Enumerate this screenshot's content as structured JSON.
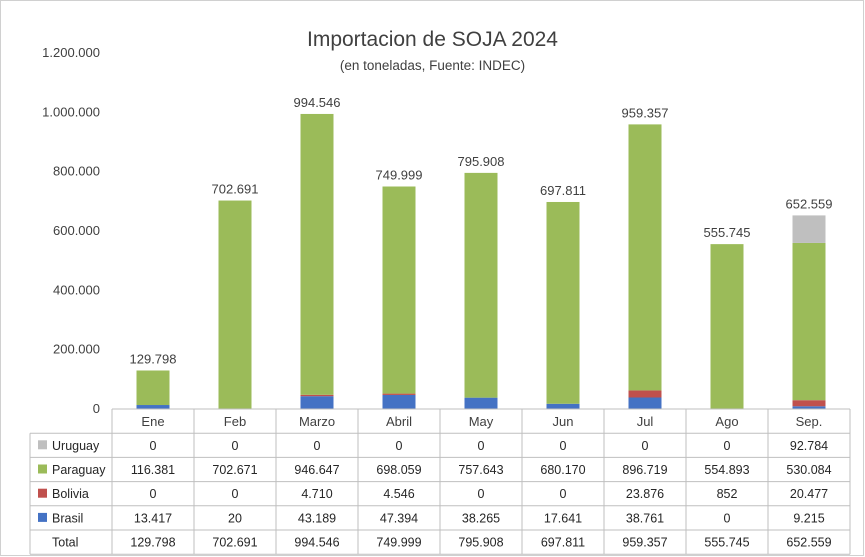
{
  "chart_data": {
    "type": "bar",
    "stacked": true,
    "title": "Importacion de SOJA 2024",
    "subtitle": "(en toneladas, Fuente: INDEC)",
    "categories": [
      "Ene",
      "Feb",
      "Marzo",
      "Abril",
      "May",
      "Jun",
      "Jul",
      "Ago",
      "Sep."
    ],
    "ylim": [
      0,
      1200000
    ],
    "yticks": [
      "0",
      "200.000",
      "400.000",
      "600.000",
      "800.000",
      "1.000.000",
      "1.200.000"
    ],
    "ytick_values": [
      0,
      200000,
      400000,
      600000,
      800000,
      1000000,
      1200000
    ],
    "grid": false,
    "legend": "table-below",
    "series": [
      {
        "name": "Brasil",
        "color": "#4472c4",
        "values": [
          13417,
          20,
          43189,
          47394,
          38265,
          17641,
          38761,
          0,
          9215
        ],
        "labels": [
          "13.417",
          "20",
          "43.189",
          "47.394",
          "38.265",
          "17.641",
          "38.761",
          "0",
          "9.215"
        ]
      },
      {
        "name": "Bolivia",
        "color": "#c0504d",
        "values": [
          0,
          0,
          4710,
          4546,
          0,
          0,
          23876,
          852,
          20477
        ],
        "labels": [
          "0",
          "0",
          "4.710",
          "4.546",
          "0",
          "0",
          "23.876",
          "852",
          "20.477"
        ]
      },
      {
        "name": "Paraguay",
        "color": "#9bbb59",
        "values": [
          116381,
          702671,
          946647,
          698059,
          757643,
          680170,
          896719,
          554893,
          530084
        ],
        "labels": [
          "116.381",
          "702.671",
          "946.647",
          "698.059",
          "757.643",
          "680.170",
          "896.719",
          "554.893",
          "530.084"
        ]
      },
      {
        "name": "Uruguay",
        "color": "#bfbfbf",
        "values": [
          0,
          0,
          0,
          0,
          0,
          0,
          0,
          0,
          92784
        ],
        "labels": [
          "0",
          "0",
          "0",
          "0",
          "0",
          "0",
          "0",
          "0",
          "92.784"
        ]
      }
    ],
    "totals": {
      "name": "Total",
      "values": [
        129798,
        702691,
        994546,
        749999,
        795908,
        697811,
        959357,
        555745,
        652559
      ],
      "labels": [
        "129.798",
        "702.691",
        "994.546",
        "749.999",
        "795.908",
        "697.811",
        "959.357",
        "555.745",
        "652.559"
      ]
    }
  }
}
